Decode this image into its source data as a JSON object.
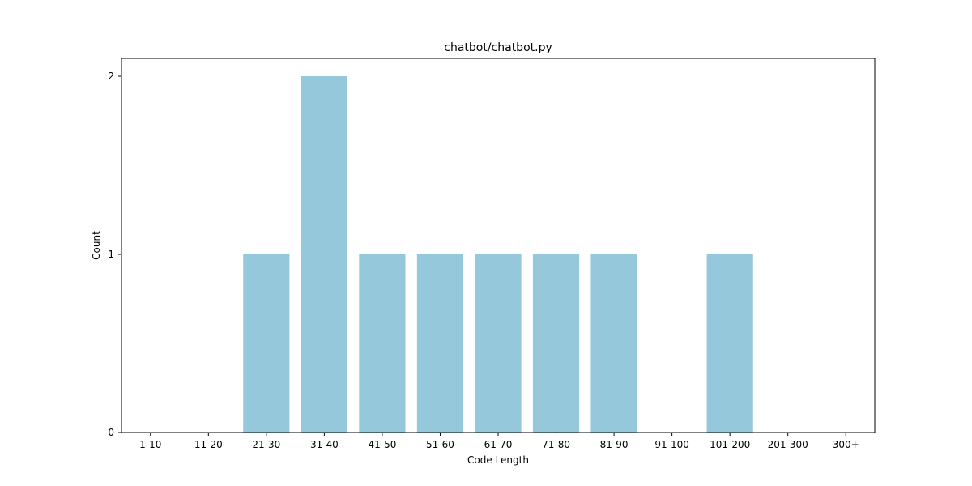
{
  "chart_data": {
    "type": "bar",
    "title": "chatbot/chatbot.py",
    "xlabel": "Code Length",
    "ylabel": "Count",
    "categories": [
      "1-10",
      "11-20",
      "21-30",
      "31-40",
      "41-50",
      "51-60",
      "61-70",
      "71-80",
      "81-90",
      "91-100",
      "101-200",
      "201-300",
      "300+"
    ],
    "values": [
      0,
      0,
      1,
      2,
      1,
      1,
      1,
      1,
      1,
      0,
      1,
      0,
      0
    ],
    "ylim": [
      0,
      2.1
    ],
    "yticks": [
      0,
      1,
      2
    ],
    "bar_color": "#96c8dc",
    "grid": false,
    "legend": "none"
  }
}
